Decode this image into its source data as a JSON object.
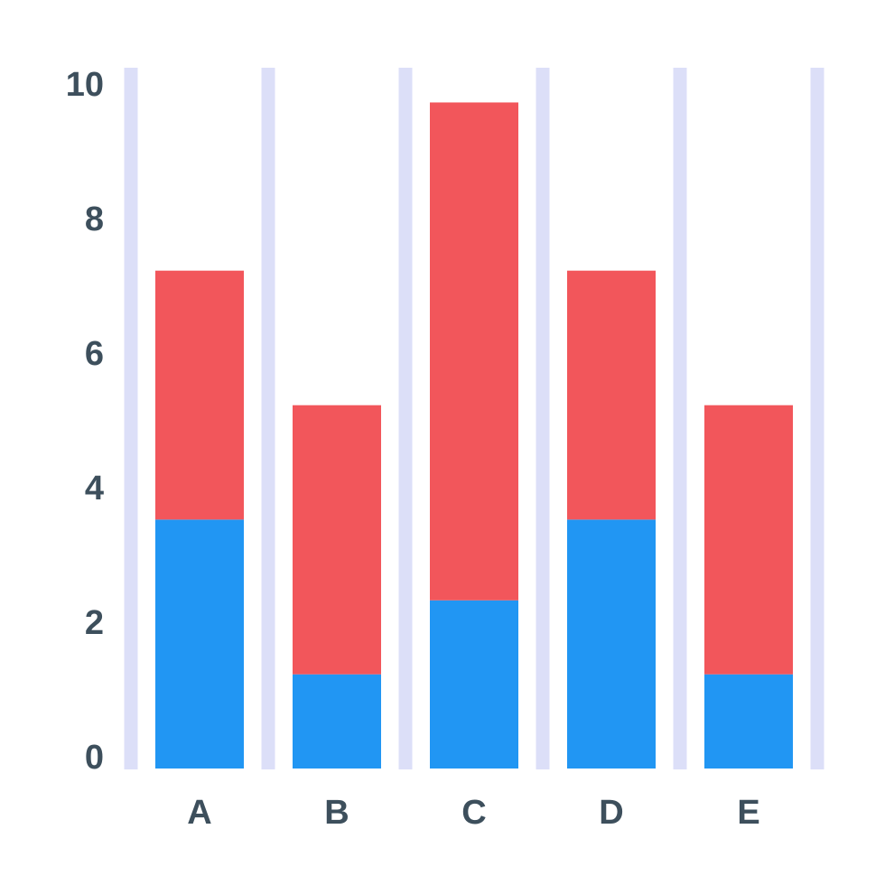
{
  "chart_data": {
    "type": "bar",
    "stacked": true,
    "title": "",
    "xlabel": "",
    "ylabel": "",
    "categories": [
      "A",
      "B",
      "C",
      "D",
      "E"
    ],
    "series": [
      {
        "color": "#2196F3",
        "values": [
          3.7,
          1.4,
          2.5,
          3.7,
          1.4
        ]
      },
      {
        "color": "#F2565B",
        "values": [
          3.7,
          4.0,
          7.4,
          3.7,
          4.0
        ]
      }
    ],
    "ylim": [
      0,
      10
    ],
    "yticks": [
      "0",
      "2",
      "4",
      "6",
      "8",
      "10"
    ],
    "grid": "vertical separators between categories",
    "legend": "none"
  },
  "colors": {
    "tick_text": "#3D4F5C",
    "separator": "#DCDFF8",
    "background": "#FFFFFF"
  }
}
